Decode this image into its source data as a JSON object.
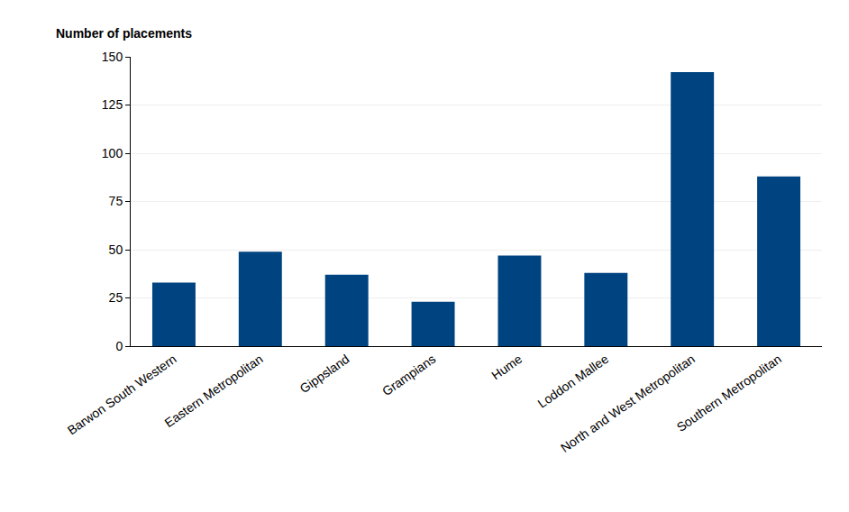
{
  "chart_data": {
    "type": "bar",
    "ylabel": "Number of placements",
    "categories": [
      "Barwon South Western",
      "Eastern Metropolitan",
      "Gippsland",
      "Grampians",
      "Hume",
      "Loddon Mallee",
      "North and West Metropolitan",
      "Southern Metropolitan"
    ],
    "values": [
      33,
      49,
      37,
      23,
      47,
      38,
      142,
      88
    ],
    "color": "#004381",
    "ylim": [
      0,
      150
    ],
    "yticks": [
      0,
      25,
      50,
      75,
      100,
      125,
      150
    ],
    "grid": true
  }
}
